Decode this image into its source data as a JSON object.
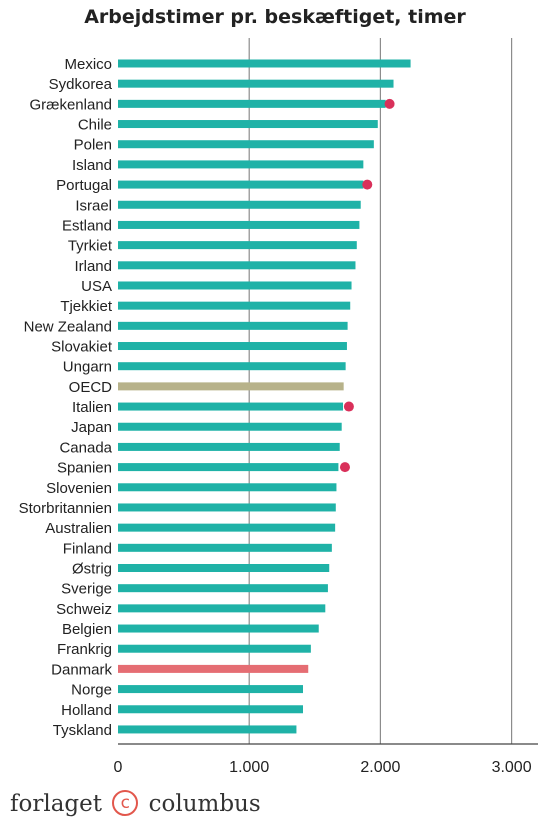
{
  "title": "Arbejdstimer pr. beskæftiget, timer",
  "footer": {
    "brand_left": "forlaget",
    "brand_mark": "c",
    "brand_right": "columbus"
  },
  "chart_data": {
    "type": "bar",
    "orientation": "horizontal",
    "title": "Arbejdstimer pr. beskæftiget, timer",
    "categories": [
      "Mexico",
      "Sydkorea",
      "Grækenland",
      "Chile",
      "Polen",
      "Island",
      "Portugal",
      "Israel",
      "Estland",
      "Tyrkiet",
      "Irland",
      "USA",
      "Tjekkiet",
      "New Zealand",
      "Slovakiet",
      "Ungarn",
      "OECD",
      "Italien",
      "Japan",
      "Canada",
      "Spanien",
      "Slovenien",
      "Storbritannien",
      "Australien",
      "Finland",
      "Østrig",
      "Sverige",
      "Schweiz",
      "Belgien",
      "Frankrig",
      "Danmark",
      "Norge",
      "Holland",
      "Tyskland"
    ],
    "values": [
      2230,
      2100,
      2040,
      1980,
      1950,
      1870,
      1870,
      1850,
      1840,
      1820,
      1810,
      1780,
      1770,
      1750,
      1745,
      1735,
      1720,
      1715,
      1705,
      1690,
      1680,
      1665,
      1660,
      1655,
      1630,
      1610,
      1600,
      1580,
      1530,
      1470,
      1450,
      1410,
      1410,
      1360
    ],
    "markers": [
      {
        "category": "Grækenland",
        "value": 2070
      },
      {
        "category": "Portugal",
        "value": 1900
      },
      {
        "category": "Italien",
        "value": 1760
      },
      {
        "category": "Spanien",
        "value": 1730
      }
    ],
    "highlight": {
      "OECD": "#b7b28a",
      "Danmark": "#e56d73"
    },
    "default_color": "#1fb2a7",
    "marker_color": "#d9305a",
    "xlim": [
      0,
      3200
    ],
    "xticks": [
      0,
      1000,
      2000,
      3000
    ],
    "xtick_labels": [
      "0",
      "1.000",
      "2.000",
      "3.000"
    ],
    "grid": true
  }
}
